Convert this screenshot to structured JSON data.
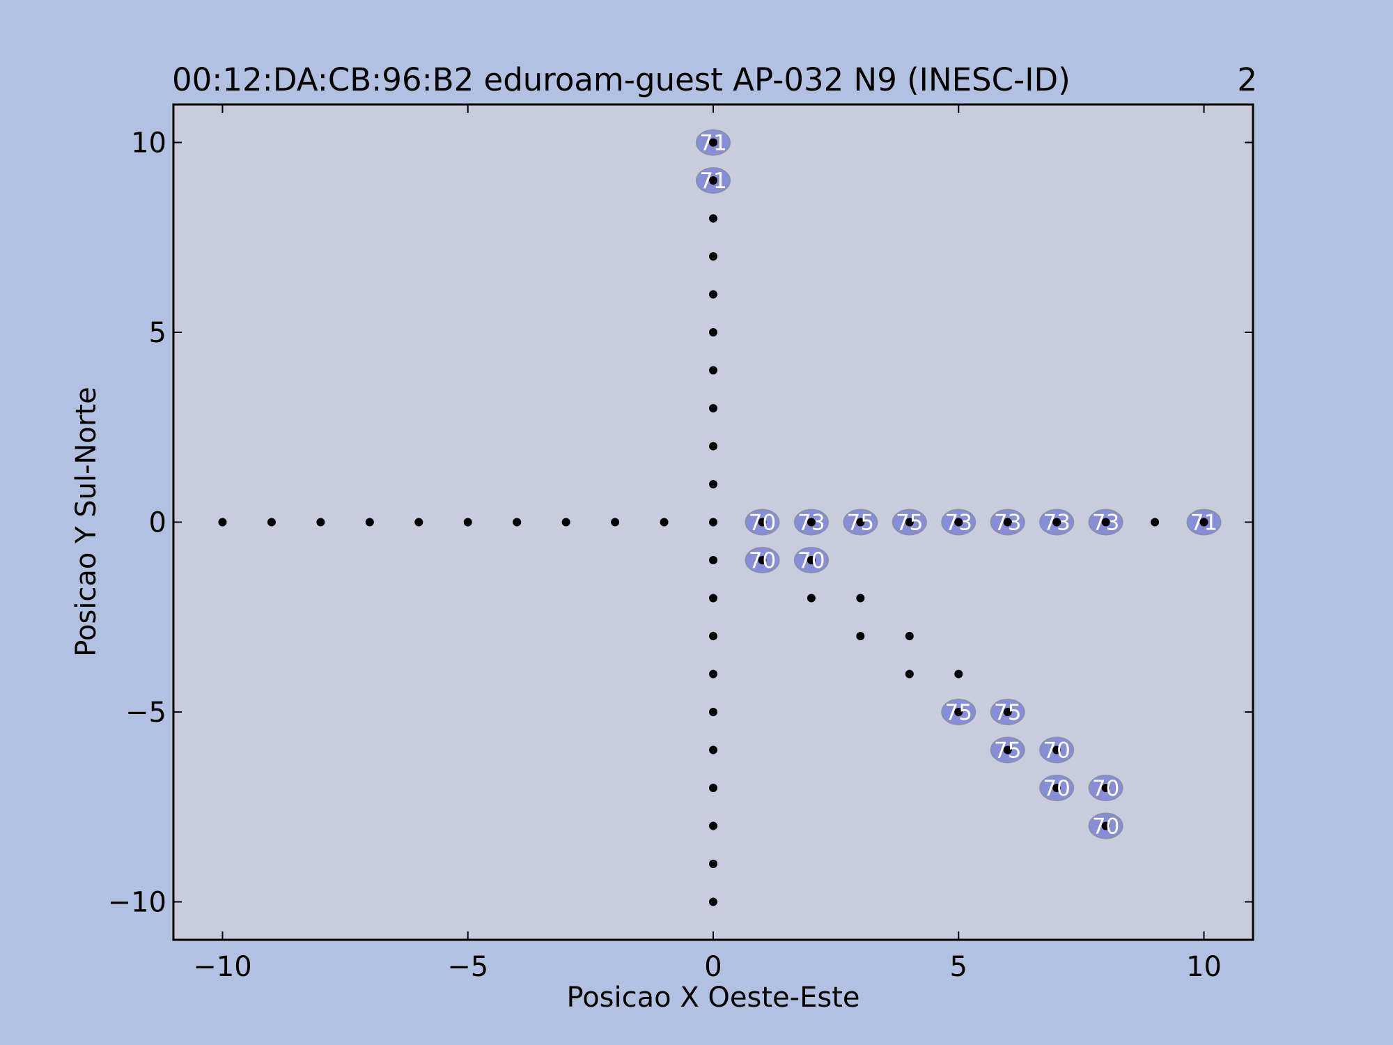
{
  "chart_data": {
    "type": "scatter",
    "title": "00:12:DA:CB:96:B2 eduroam-guest AP-032 N9 (INESC-ID)",
    "title_right": "2",
    "xlabel": "Posicao X Oeste-Este",
    "ylabel": "Posicao Y Sul-Norte",
    "xlim": [
      -11,
      11
    ],
    "ylim": [
      -11,
      11
    ],
    "xticks": [
      -10,
      -5,
      0,
      5,
      10
    ],
    "yticks": [
      -10,
      -5,
      0,
      5,
      10
    ],
    "xtick_labels": [
      "−10",
      "−5",
      "0",
      "5",
      "10"
    ],
    "ytick_labels": [
      "−10",
      "−5",
      "0",
      "5",
      "10"
    ],
    "grid": false,
    "colors": {
      "figure_bg": "#b0c1e1",
      "axes_bg": "#c8ccdc",
      "point": "#000000",
      "label_fill": "#7a83d6",
      "label_edge": "#8a8fb0",
      "label_text": "#ffffff"
    },
    "points": [
      {
        "x": -10,
        "y": 0
      },
      {
        "x": -9,
        "y": 0
      },
      {
        "x": -8,
        "y": 0
      },
      {
        "x": -7,
        "y": 0
      },
      {
        "x": -6,
        "y": 0
      },
      {
        "x": -5,
        "y": 0
      },
      {
        "x": -4,
        "y": 0
      },
      {
        "x": -3,
        "y": 0
      },
      {
        "x": -2,
        "y": 0
      },
      {
        "x": -1,
        "y": 0
      },
      {
        "x": 0,
        "y": 0
      },
      {
        "x": 1,
        "y": 0,
        "label": "70"
      },
      {
        "x": 2,
        "y": 0,
        "label": "73"
      },
      {
        "x": 3,
        "y": 0,
        "label": "75"
      },
      {
        "x": 4,
        "y": 0,
        "label": "75"
      },
      {
        "x": 5,
        "y": 0,
        "label": "73"
      },
      {
        "x": 6,
        "y": 0,
        "label": "73"
      },
      {
        "x": 7,
        "y": 0,
        "label": "73"
      },
      {
        "x": 8,
        "y": 0,
        "label": "73"
      },
      {
        "x": 9,
        "y": 0
      },
      {
        "x": 10,
        "y": 0,
        "label": "71"
      },
      {
        "x": 0,
        "y": 10,
        "label": "71"
      },
      {
        "x": 0,
        "y": 9,
        "label": "71"
      },
      {
        "x": 0,
        "y": 8
      },
      {
        "x": 0,
        "y": 7
      },
      {
        "x": 0,
        "y": 6
      },
      {
        "x": 0,
        "y": 5
      },
      {
        "x": 0,
        "y": 4
      },
      {
        "x": 0,
        "y": 3
      },
      {
        "x": 0,
        "y": 2
      },
      {
        "x": 0,
        "y": 1
      },
      {
        "x": 0,
        "y": -1
      },
      {
        "x": 0,
        "y": -2
      },
      {
        "x": 0,
        "y": -3
      },
      {
        "x": 0,
        "y": -4
      },
      {
        "x": 0,
        "y": -5
      },
      {
        "x": 0,
        "y": -6
      },
      {
        "x": 0,
        "y": -7
      },
      {
        "x": 0,
        "y": -8
      },
      {
        "x": 0,
        "y": -9
      },
      {
        "x": 0,
        "y": -10
      },
      {
        "x": 1,
        "y": -1,
        "label": "70"
      },
      {
        "x": 2,
        "y": -1,
        "label": "70"
      },
      {
        "x": 2,
        "y": -2
      },
      {
        "x": 3,
        "y": -2
      },
      {
        "x": 3,
        "y": -3
      },
      {
        "x": 4,
        "y": -3
      },
      {
        "x": 4,
        "y": -4
      },
      {
        "x": 5,
        "y": -4
      },
      {
        "x": 5,
        "y": -5,
        "label": "75"
      },
      {
        "x": 6,
        "y": -5,
        "label": "75"
      },
      {
        "x": 6,
        "y": -6,
        "label": "75"
      },
      {
        "x": 7,
        "y": -6,
        "label": "70"
      },
      {
        "x": 7,
        "y": -7,
        "label": "70"
      },
      {
        "x": 8,
        "y": -7,
        "label": "70"
      },
      {
        "x": 8,
        "y": -8,
        "label": "70"
      }
    ]
  }
}
